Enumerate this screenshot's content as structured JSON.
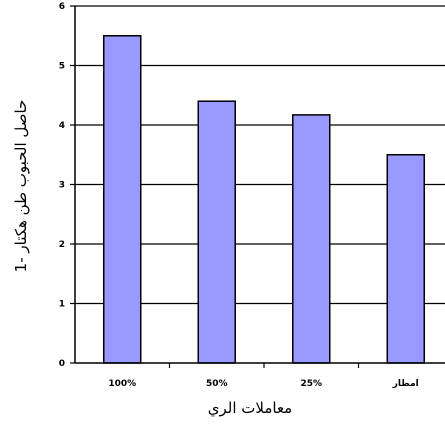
{
  "chart_data": {
    "type": "bar",
    "categories": [
      "100%",
      "50%",
      "25%",
      "امطار"
    ],
    "values": [
      5.5,
      4.4,
      4.17,
      3.5
    ],
    "xlabel": "معاملات الري",
    "ylabel": "حاصل الحبوب طن هكتار -1",
    "ylim": [
      0,
      6
    ],
    "yticks": [
      "0",
      "1",
      "2",
      "3",
      "4",
      "5",
      "6"
    ],
    "grid": "horizontal",
    "bar_color": "#9999ff",
    "bar_edge_color": "#000000"
  }
}
